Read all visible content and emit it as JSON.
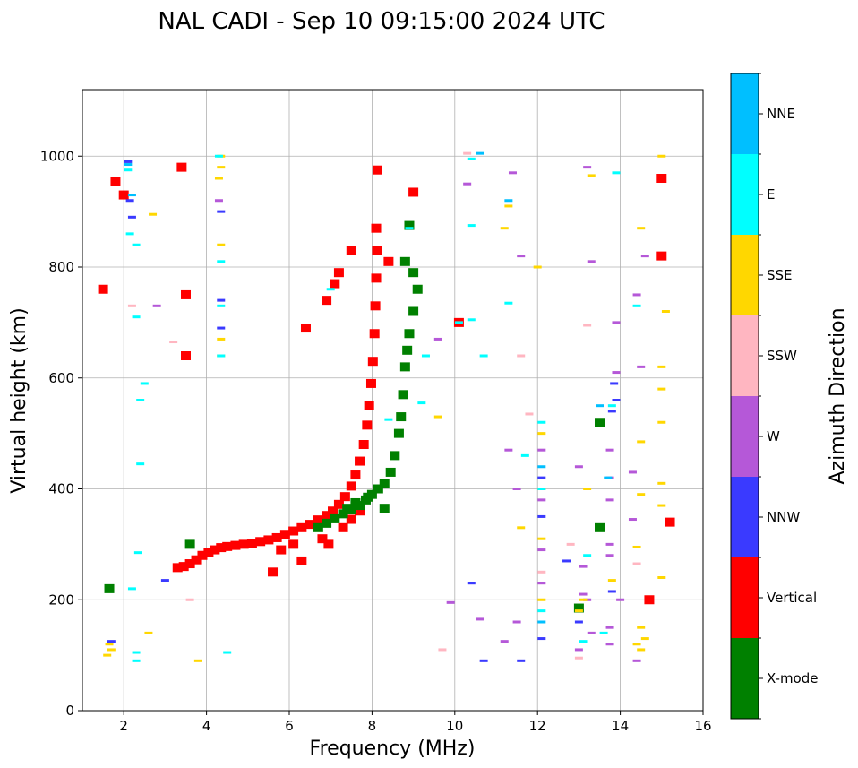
{
  "chart_data": {
    "type": "scatter",
    "title": "NAL CADI - Sep 10 09:15:00 2024 UTC",
    "xlabel": "Frequency (MHz)",
    "ylabel": "Virtual height (km)",
    "xlim": [
      1,
      16
    ],
    "ylim": [
      0,
      1120
    ],
    "xticks": [
      2,
      4,
      6,
      8,
      10,
      12,
      14,
      16
    ],
    "yticks": [
      0,
      200,
      400,
      600,
      800,
      1000
    ],
    "grid": true,
    "colorbar": {
      "title": "Azimuth Direction",
      "categories": [
        {
          "name": "X-mode",
          "color": "#008000"
        },
        {
          "name": "Vertical",
          "color": "#ff0000"
        },
        {
          "name": "NNW",
          "color": "#3a3aff"
        },
        {
          "name": "W",
          "color": "#b558d8"
        },
        {
          "name": "SSW",
          "color": "#ffb6c1"
        },
        {
          "name": "SSE",
          "color": "#ffd700"
        },
        {
          "name": "E",
          "color": "#00ffff"
        },
        {
          "name": "NNE",
          "color": "#00bfff"
        }
      ]
    },
    "series": [
      {
        "name": "Vertical",
        "points": [
          [
            3.3,
            258
          ],
          [
            3.45,
            260
          ],
          [
            3.6,
            265
          ],
          [
            3.75,
            272
          ],
          [
            3.9,
            280
          ],
          [
            4.05,
            286
          ],
          [
            4.2,
            290
          ],
          [
            4.35,
            294
          ],
          [
            4.5,
            296
          ],
          [
            4.7,
            298
          ],
          [
            4.9,
            300
          ],
          [
            5.1,
            302
          ],
          [
            5.3,
            305
          ],
          [
            5.5,
            308
          ],
          [
            5.7,
            312
          ],
          [
            5.9,
            318
          ],
          [
            6.1,
            324
          ],
          [
            6.3,
            330
          ],
          [
            6.5,
            336
          ],
          [
            6.7,
            344
          ],
          [
            6.9,
            352
          ],
          [
            7.05,
            360
          ],
          [
            7.2,
            372
          ],
          [
            7.35,
            386
          ],
          [
            7.5,
            405
          ],
          [
            7.6,
            425
          ],
          [
            7.7,
            450
          ],
          [
            7.8,
            480
          ],
          [
            7.88,
            515
          ],
          [
            7.93,
            550
          ],
          [
            7.98,
            590
          ],
          [
            8.02,
            630
          ],
          [
            8.06,
            680
          ],
          [
            8.08,
            730
          ],
          [
            8.1,
            780
          ],
          [
            8.12,
            830
          ],
          [
            8.13,
            975
          ],
          [
            7.3,
            330
          ],
          [
            7.5,
            345
          ],
          [
            7.7,
            360
          ],
          [
            6.8,
            310
          ],
          [
            6.95,
            300
          ],
          [
            6.4,
            690
          ],
          [
            6.9,
            740
          ],
          [
            7.2,
            790
          ],
          [
            7.5,
            830
          ],
          [
            7.1,
            770
          ],
          [
            8.1,
            870
          ],
          [
            8.4,
            810
          ],
          [
            9.0,
            935
          ],
          [
            10.1,
            700
          ],
          [
            15.0,
            960
          ],
          [
            15.0,
            820
          ],
          [
            14.7,
            200
          ],
          [
            15.2,
            340
          ],
          [
            3.5,
            640
          ],
          [
            3.5,
            750
          ],
          [
            1.5,
            760
          ],
          [
            1.8,
            955
          ],
          [
            2.0,
            930
          ],
          [
            3.4,
            980
          ],
          [
            6.1,
            300
          ],
          [
            5.8,
            290
          ],
          [
            6.3,
            270
          ],
          [
            5.6,
            250
          ]
        ]
      },
      {
        "name": "X-mode",
        "points": [
          [
            6.7,
            330
          ],
          [
            6.9,
            338
          ],
          [
            7.1,
            346
          ],
          [
            7.3,
            355
          ],
          [
            7.5,
            362
          ],
          [
            7.7,
            370
          ],
          [
            7.85,
            380
          ],
          [
            8.0,
            390
          ],
          [
            8.15,
            400
          ],
          [
            8.3,
            410
          ],
          [
            8.45,
            430
          ],
          [
            8.55,
            460
          ],
          [
            8.65,
            500
          ],
          [
            8.7,
            530
          ],
          [
            8.75,
            570
          ],
          [
            8.8,
            620
          ],
          [
            8.85,
            650
          ],
          [
            8.9,
            680
          ],
          [
            9.0,
            720
          ],
          [
            9.1,
            760
          ],
          [
            9.0,
            790
          ],
          [
            8.8,
            810
          ],
          [
            8.9,
            875
          ],
          [
            3.6,
            300
          ],
          [
            1.65,
            220
          ],
          [
            7.6,
            375
          ],
          [
            7.4,
            365
          ],
          [
            8.3,
            365
          ],
          [
            7.9,
            385
          ],
          [
            13.5,
            520
          ],
          [
            13.5,
            330
          ],
          [
            13.0,
            185
          ]
        ]
      },
      {
        "name": "NNW",
        "points": [
          [
            1.7,
            125
          ],
          [
            2.1,
            990
          ],
          [
            2.15,
            920
          ],
          [
            2.2,
            890
          ],
          [
            4.35,
            740
          ],
          [
            4.35,
            690
          ],
          [
            4.35,
            900
          ],
          [
            13.9,
            560
          ],
          [
            13.85,
            590
          ],
          [
            13.8,
            540
          ],
          [
            10.7,
            90
          ],
          [
            12.1,
            130
          ],
          [
            12.1,
            420
          ],
          [
            12.1,
            350
          ],
          [
            11.6,
            90
          ],
          [
            13.0,
            160
          ],
          [
            12.7,
            270
          ],
          [
            10.4,
            230
          ],
          [
            3.0,
            235
          ],
          [
            13.8,
            215
          ]
        ]
      },
      {
        "name": "W",
        "points": [
          [
            13.75,
            120
          ],
          [
            13.75,
            150
          ],
          [
            13.75,
            280
          ],
          [
            13.75,
            300
          ],
          [
            13.75,
            380
          ],
          [
            13.75,
            420
          ],
          [
            13.75,
            470
          ],
          [
            13.9,
            610
          ],
          [
            13.9,
            700
          ],
          [
            13.1,
            210
          ],
          [
            13.1,
            260
          ],
          [
            13.2,
            200
          ],
          [
            14.4,
            90
          ],
          [
            14.3,
            430
          ],
          [
            14.5,
            620
          ],
          [
            14.6,
            820
          ],
          [
            14.4,
            750
          ],
          [
            14.3,
            345
          ],
          [
            13.3,
            140
          ],
          [
            13.3,
            810
          ],
          [
            13.2,
            980
          ],
          [
            11.4,
            970
          ],
          [
            11.6,
            820
          ],
          [
            11.3,
            470
          ],
          [
            11.5,
            400
          ],
          [
            12.1,
            290
          ],
          [
            12.1,
            470
          ],
          [
            12.1,
            380
          ],
          [
            12.1,
            230
          ],
          [
            11.2,
            125
          ],
          [
            11.5,
            160
          ],
          [
            10.6,
            165
          ],
          [
            9.9,
            195
          ],
          [
            9.6,
            670
          ],
          [
            10.3,
            950
          ],
          [
            2.8,
            730
          ],
          [
            4.3,
            920
          ],
          [
            13.0,
            110
          ],
          [
            13.0,
            440
          ],
          [
            14.0,
            200
          ]
        ]
      },
      {
        "name": "SSW",
        "points": [
          [
            13.0,
            95
          ],
          [
            13.2,
            695
          ],
          [
            11.6,
            640
          ],
          [
            11.8,
            535
          ],
          [
            14.4,
            265
          ],
          [
            12.1,
            250
          ],
          [
            9.7,
            110
          ],
          [
            10.3,
            1005
          ],
          [
            3.2,
            665
          ],
          [
            3.6,
            200
          ],
          [
            2.2,
            730
          ],
          [
            12.8,
            300
          ]
        ]
      },
      {
        "name": "SSE",
        "points": [
          [
            1.6,
            100
          ],
          [
            1.65,
            120
          ],
          [
            1.7,
            110
          ],
          [
            3.8,
            90
          ],
          [
            4.35,
            640
          ],
          [
            4.35,
            670
          ],
          [
            4.35,
            840
          ],
          [
            4.35,
            980
          ],
          [
            4.35,
            1000
          ],
          [
            4.3,
            960
          ],
          [
            11.2,
            870
          ],
          [
            11.3,
            910
          ],
          [
            11.6,
            330
          ],
          [
            12.1,
            200
          ],
          [
            12.1,
            310
          ],
          [
            12.1,
            400
          ],
          [
            12.1,
            500
          ],
          [
            13.2,
            400
          ],
          [
            13.1,
            200
          ],
          [
            13.0,
            180
          ],
          [
            14.4,
            120
          ],
          [
            14.5,
            150
          ],
          [
            14.6,
            130
          ],
          [
            14.5,
            110
          ],
          [
            14.4,
            295
          ],
          [
            14.5,
            390
          ],
          [
            14.5,
            485
          ],
          [
            14.5,
            870
          ],
          [
            15.0,
            620
          ],
          [
            15.0,
            580
          ],
          [
            15.0,
            520
          ],
          [
            15.0,
            410
          ],
          [
            15.0,
            370
          ],
          [
            15.0,
            240
          ],
          [
            15.1,
            720
          ],
          [
            15.0,
            1000
          ],
          [
            13.3,
            965
          ],
          [
            13.8,
            235
          ],
          [
            12.0,
            800
          ],
          [
            9.6,
            530
          ],
          [
            2.6,
            140
          ],
          [
            2.7,
            895
          ]
        ]
      },
      {
        "name": "E",
        "points": [
          [
            2.3,
            90
          ],
          [
            2.3,
            105
          ],
          [
            4.5,
            105
          ],
          [
            2.35,
            285
          ],
          [
            2.4,
            445
          ],
          [
            2.4,
            560
          ],
          [
            2.2,
            220
          ],
          [
            2.3,
            840
          ],
          [
            2.3,
            710
          ],
          [
            2.15,
            860
          ],
          [
            2.1,
            975
          ],
          [
            2.5,
            590
          ],
          [
            4.35,
            810
          ],
          [
            4.35,
            730
          ],
          [
            4.35,
            640
          ],
          [
            4.3,
            1000
          ],
          [
            10.4,
            995
          ],
          [
            10.4,
            875
          ],
          [
            10.4,
            705
          ],
          [
            10.1,
            700
          ],
          [
            10.7,
            640
          ],
          [
            9.3,
            640
          ],
          [
            9.2,
            555
          ],
          [
            8.4,
            525
          ],
          [
            11.3,
            735
          ],
          [
            12.1,
            180
          ],
          [
            12.1,
            400
          ],
          [
            12.1,
            520
          ],
          [
            13.1,
            125
          ],
          [
            13.2,
            280
          ],
          [
            13.6,
            140
          ],
          [
            13.8,
            550
          ],
          [
            13.9,
            970
          ],
          [
            14.4,
            730
          ],
          [
            11.7,
            460
          ],
          [
            8.9,
            870
          ],
          [
            7.0,
            760
          ]
        ]
      },
      {
        "name": "NNE",
        "points": [
          [
            2.1,
            985
          ],
          [
            2.2,
            930
          ],
          [
            10.6,
            1005
          ],
          [
            12.1,
            160
          ],
          [
            12.1,
            440
          ],
          [
            13.7,
            420
          ],
          [
            13.5,
            550
          ],
          [
            11.3,
            920
          ]
        ]
      }
    ]
  }
}
